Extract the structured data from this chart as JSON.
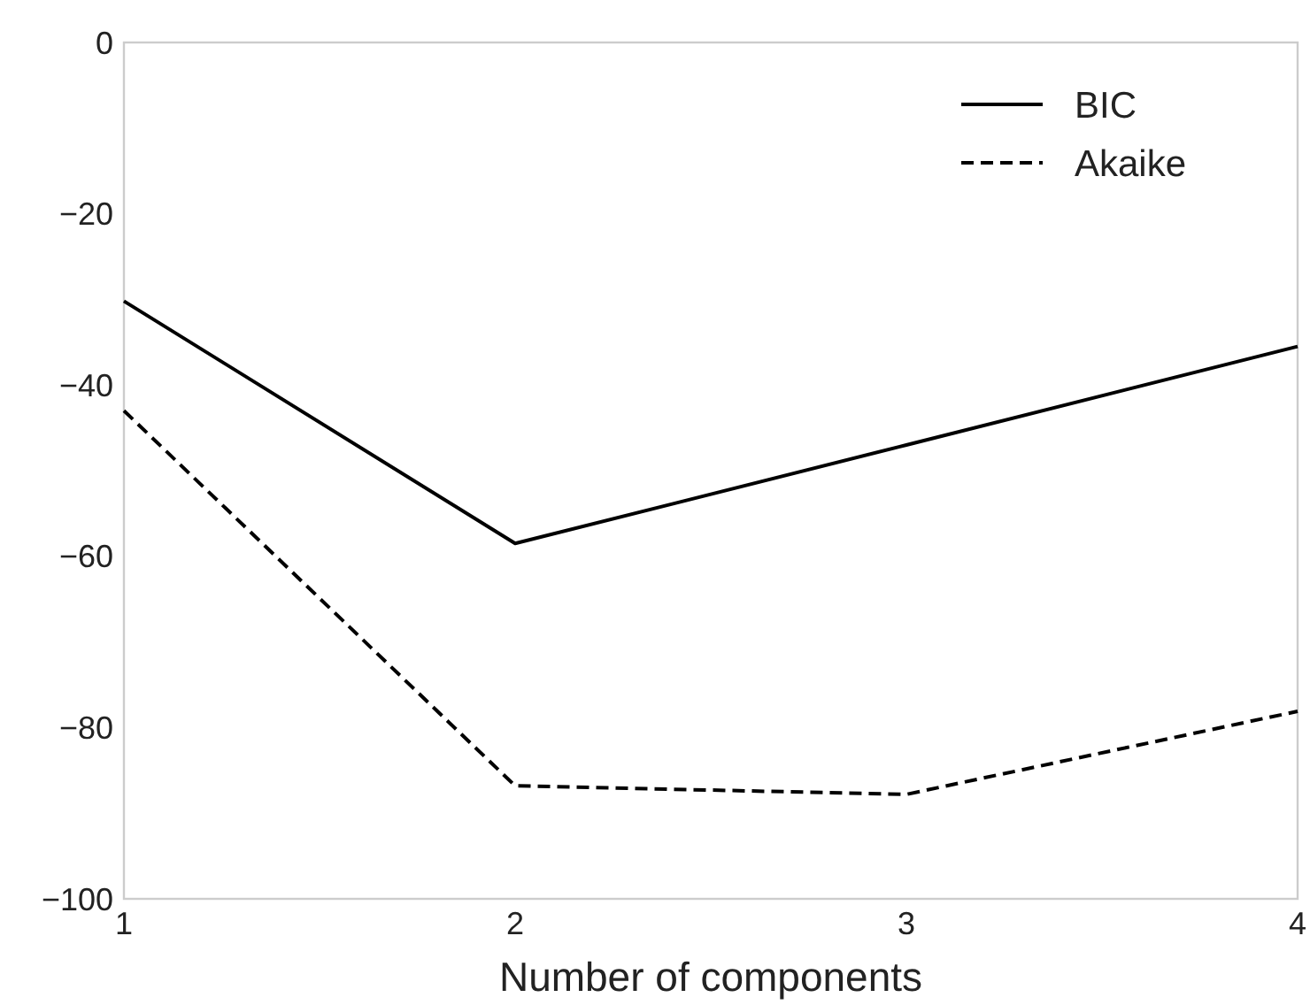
{
  "chart_data": {
    "type": "line",
    "xlabel": "Number of components",
    "x": [
      1,
      2,
      3,
      4
    ],
    "series": [
      {
        "name": "BIC",
        "color": "#000000",
        "line_style": "solid",
        "values": [
          -30.2,
          -58.5,
          -47,
          -35.5
        ]
      },
      {
        "name": "Akaike",
        "color": "#000000",
        "line_style": "dashed",
        "values": [
          -43,
          -86.8,
          -87.8,
          -78.1
        ]
      }
    ],
    "xlim": [
      1,
      4
    ],
    "xticks": [
      1,
      2,
      3,
      4
    ],
    "ylim": [
      -100,
      0
    ],
    "yticks": [
      -100,
      -80,
      -60,
      -40,
      -20,
      0
    ],
    "grid": false,
    "legend": "top right"
  }
}
